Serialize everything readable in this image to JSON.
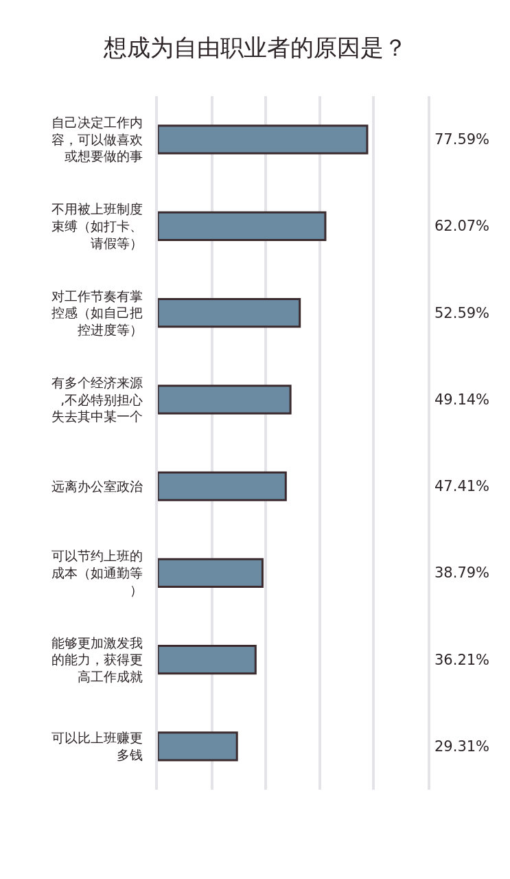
{
  "chart_data": {
    "type": "bar",
    "orientation": "horizontal",
    "title": "想成为自由职业者的原因是？",
    "categories": [
      "自己决定工作内容，可以做喜欢或想要做的事",
      "不用被上班制度束缚（如打卡、请假等）",
      "对工作节奏有掌控感（如自己把控进度等）",
      "有多个经济来源,不必特别担心失去其中某一个",
      "远离办公室政治",
      "可以节约上班的成本（如通勤等）",
      "能够更加激发我的能力，获得更高工作成就",
      "可以比上班赚更多钱"
    ],
    "values": [
      77.59,
      62.07,
      52.59,
      49.14,
      47.41,
      38.79,
      36.21,
      29.31
    ],
    "value_labels": [
      "77.59%",
      "62.07%",
      "52.59%",
      "49.14%",
      "47.41%",
      "38.79%",
      "36.21%",
      "29.31%"
    ],
    "color": "#6b8ba2",
    "xlim": [
      0,
      100
    ],
    "grid": "x",
    "tick_labels": "y"
  }
}
